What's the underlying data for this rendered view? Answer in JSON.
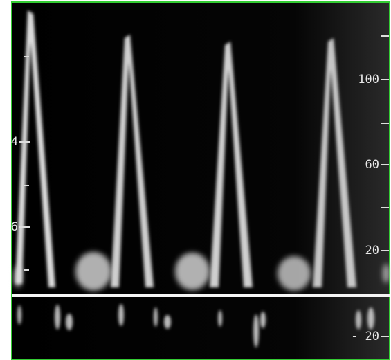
{
  "scale": {
    "labels": [
      "100",
      "60",
      "20",
      "- 20"
    ]
  },
  "left_labels": [
    "4",
    "6"
  ]
}
